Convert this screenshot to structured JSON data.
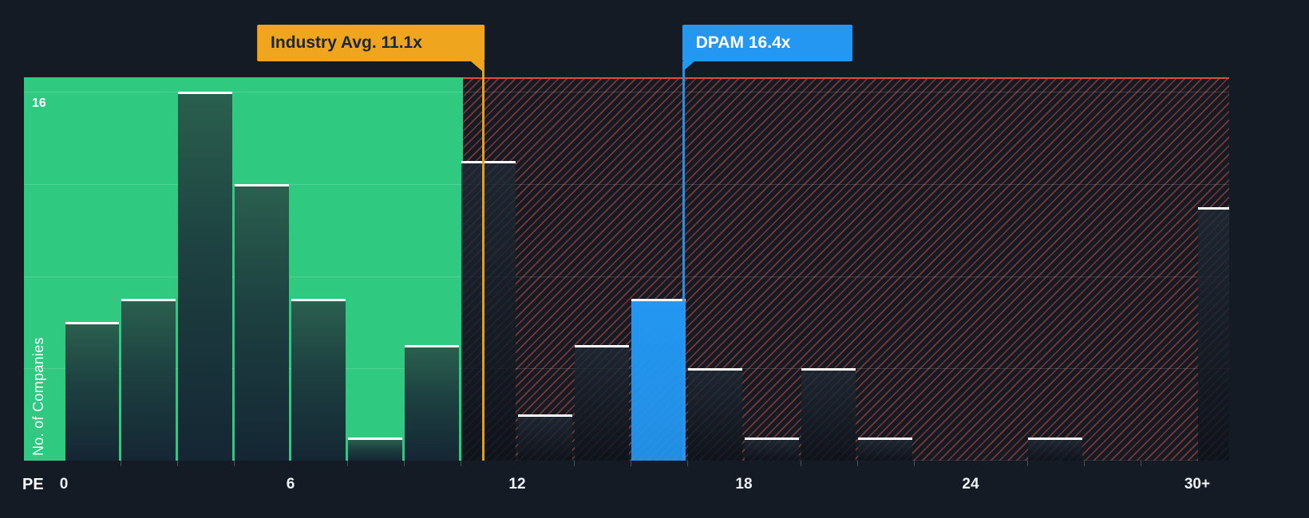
{
  "colors": {
    "background": "#141B24",
    "undervalued_zone": "#2FC980",
    "overvalued_hatch": "#E9563E",
    "bar_cap": "#FFFFFF",
    "industry_marker": "#EFA51D",
    "company_marker": "#2397F2"
  },
  "chart_data": {
    "type": "bar",
    "title": "",
    "xlabel": "PE",
    "ylabel": "No. of Companies",
    "y_top_label": "16",
    "y_gridlines": [
      4,
      8,
      12,
      16
    ],
    "ylim": [
      0,
      16.6
    ],
    "xlim": [
      0,
      30.9
    ],
    "bin_width": 1.5,
    "x_tick_labels": [
      {
        "value": 0,
        "label": "0"
      },
      {
        "value": 6,
        "label": "6"
      },
      {
        "value": 12,
        "label": "12"
      },
      {
        "value": 18,
        "label": "18"
      },
      {
        "value": 24,
        "label": "24"
      },
      {
        "value": 30,
        "label": "30+"
      }
    ],
    "bins": [
      {
        "start": 0,
        "count": 6,
        "zone": "under"
      },
      {
        "start": 1.5,
        "count": 7,
        "zone": "under"
      },
      {
        "start": 3,
        "count": 16,
        "zone": "under"
      },
      {
        "start": 4.5,
        "count": 12,
        "zone": "under"
      },
      {
        "start": 6,
        "count": 7,
        "zone": "under"
      },
      {
        "start": 7.5,
        "count": 1,
        "zone": "under"
      },
      {
        "start": 9,
        "count": 5,
        "zone": "under"
      },
      {
        "start": 10.5,
        "count": 13,
        "zone": "over"
      },
      {
        "start": 12,
        "count": 2,
        "zone": "over"
      },
      {
        "start": 13.5,
        "count": 5,
        "zone": "over"
      },
      {
        "start": 15,
        "count": 7,
        "zone": "highlight"
      },
      {
        "start": 16.5,
        "count": 4,
        "zone": "over"
      },
      {
        "start": 18,
        "count": 1,
        "zone": "over"
      },
      {
        "start": 19.5,
        "count": 4,
        "zone": "over"
      },
      {
        "start": 21,
        "count": 1,
        "zone": "over"
      },
      {
        "start": 22.5,
        "count": 0,
        "zone": "over"
      },
      {
        "start": 24,
        "count": 0,
        "zone": "over"
      },
      {
        "start": 25.5,
        "count": 1,
        "zone": "over"
      },
      {
        "start": 27,
        "count": 0,
        "zone": "over"
      },
      {
        "start": 28.5,
        "count": 0,
        "zone": "over"
      },
      {
        "start": 30,
        "count": 11,
        "zone": "over"
      }
    ],
    "markers": [
      {
        "id": "industry-avg",
        "label": "Industry Avg. 11.1x",
        "value": 11.1,
        "color": "#EFA51D",
        "text_color": "#1C2733",
        "align": "left"
      },
      {
        "id": "dpam",
        "label": "DPAM 16.4x",
        "value": 16.4,
        "color": "#2397F2",
        "text_color": "#FFFFFF",
        "align": "right"
      }
    ]
  }
}
